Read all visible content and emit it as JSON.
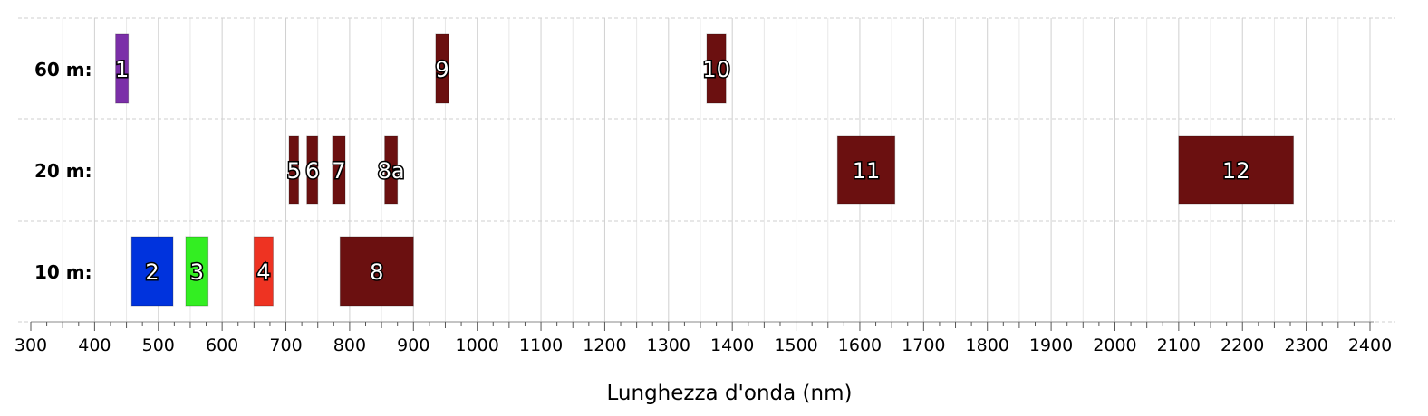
{
  "chart_data": {
    "type": "range-bar",
    "xlabel": "Lunghezza d'onda (nm)",
    "xlim": [
      300,
      2400
    ],
    "xticks": [
      300,
      400,
      500,
      600,
      700,
      800,
      900,
      1000,
      1100,
      1200,
      1300,
      1400,
      1500,
      1600,
      1700,
      1800,
      1900,
      2000,
      2100,
      2200,
      2300,
      2400
    ],
    "grid": true,
    "rows": [
      {
        "label": "60 m:"
      },
      {
        "label": "20 m:"
      },
      {
        "label": "10 m:"
      }
    ],
    "bands": [
      {
        "label": "1",
        "row": 0,
        "start": 433,
        "end": 453,
        "color": "#7b2fa8"
      },
      {
        "label": "9",
        "row": 0,
        "start": 935,
        "end": 955,
        "color": "#6b1010"
      },
      {
        "label": "10",
        "row": 0,
        "start": 1360,
        "end": 1390,
        "color": "#6b1010"
      },
      {
        "label": "5",
        "row": 1,
        "start": 705,
        "end": 720,
        "color": "#6b1010"
      },
      {
        "label": "6",
        "row": 1,
        "start": 733,
        "end": 750,
        "color": "#6b1010"
      },
      {
        "label": "7",
        "row": 1,
        "start": 773,
        "end": 793,
        "color": "#6b1010"
      },
      {
        "label": "8a",
        "row": 1,
        "start": 855,
        "end": 875,
        "color": "#6b1010"
      },
      {
        "label": "11",
        "row": 1,
        "start": 1565,
        "end": 1655,
        "color": "#6b1010"
      },
      {
        "label": "12",
        "row": 1,
        "start": 2100,
        "end": 2280,
        "color": "#6b1010"
      },
      {
        "label": "2",
        "row": 2,
        "start": 458,
        "end": 523,
        "color": "#0033dd"
      },
      {
        "label": "3",
        "row": 2,
        "start": 543,
        "end": 578,
        "color": "#33ee22"
      },
      {
        "label": "4",
        "row": 2,
        "start": 650,
        "end": 680,
        "color": "#ee3322"
      },
      {
        "label": "8",
        "row": 2,
        "start": 785,
        "end": 900,
        "color": "#6b1010"
      }
    ]
  }
}
